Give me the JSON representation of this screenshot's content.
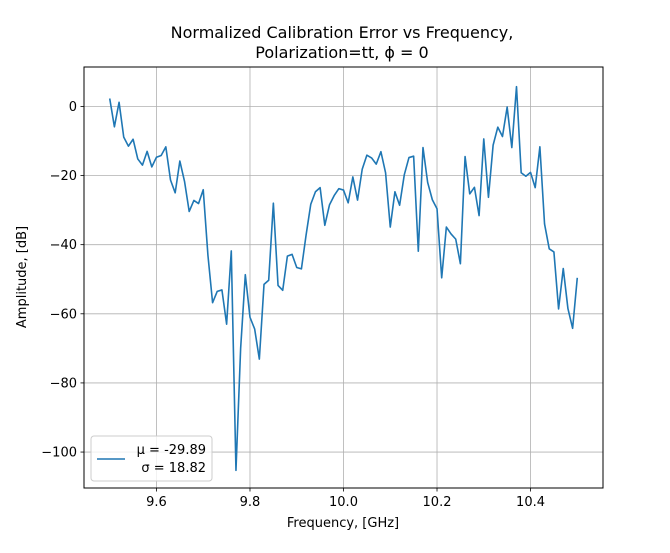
{
  "chart_data": {
    "type": "line",
    "title_line1": "Normalized Calibration Error vs Frequency,",
    "title_line2": "Polarization=tt, ϕ = 0",
    "xlabel": "Frequency, [GHz]",
    "ylabel": "Amplitude, [dB]",
    "xlim": [
      9.445,
      10.555
    ],
    "ylim": [
      -110.4,
      11.4
    ],
    "xticks": [
      9.6,
      9.8,
      10.0,
      10.2,
      10.4
    ],
    "xtick_labels": [
      "9.6",
      "9.8",
      "10.0",
      "10.2",
      "10.4"
    ],
    "yticks": [
      0,
      -20,
      -40,
      -60,
      -80,
      -100
    ],
    "ytick_labels": [
      "0",
      "−20",
      "−40",
      "−60",
      "−80",
      "−100"
    ],
    "grid": true,
    "legend_position": "lower-left",
    "color": "#1f77b4",
    "series": [
      {
        "legend_line1": "μ = -29.89",
        "legend_line2": "σ = 18.82",
        "x": [
          9.5,
          9.51,
          9.52,
          9.53,
          9.54,
          9.55,
          9.56,
          9.57,
          9.58,
          9.59,
          9.6,
          9.61,
          9.62,
          9.63,
          9.64,
          9.65,
          9.66,
          9.67,
          9.68,
          9.69,
          9.7,
          9.71,
          9.72,
          9.73,
          9.74,
          9.75,
          9.76,
          9.77,
          9.78,
          9.79,
          9.8,
          9.81,
          9.82,
          9.83,
          9.84,
          9.85,
          9.86,
          9.87,
          9.88,
          9.89,
          9.9,
          9.91,
          9.92,
          9.93,
          9.94,
          9.95,
          9.96,
          9.97,
          9.98,
          9.99,
          10.0,
          10.01,
          10.02,
          10.03,
          10.04,
          10.05,
          10.06,
          10.07,
          10.08,
          10.09,
          10.1,
          10.11,
          10.12,
          10.13,
          10.14,
          10.15,
          10.16,
          10.17,
          10.18,
          10.19,
          10.2,
          10.21,
          10.22,
          10.23,
          10.24,
          10.25,
          10.26,
          10.27,
          10.28,
          10.29,
          10.3,
          10.31,
          10.32,
          10.33,
          10.34,
          10.35,
          10.36,
          10.37,
          10.38,
          10.39,
          10.4,
          10.41,
          10.42,
          10.43,
          10.44,
          10.45,
          10.46,
          10.47,
          10.48,
          10.49,
          10.5
        ],
        "y": [
          2.3,
          -5.9,
          1.2,
          -8.9,
          -11.5,
          -9.5,
          -15.2,
          -17,
          -13,
          -17.5,
          -14.7,
          -14.2,
          -11.7,
          -21.3,
          -25,
          -15.8,
          -21.7,
          -30.4,
          -27.2,
          -28.1,
          -24.1,
          -43,
          -56.8,
          -53.5,
          -53.1,
          -63,
          -41.8,
          -105.3,
          -70,
          -48.7,
          -61,
          -64.4,
          -73.1,
          -51.5,
          -50.3,
          -28,
          -51.8,
          -53.2,
          -43.3,
          -42.8,
          -46.6,
          -47,
          -37.2,
          -28.3,
          -24.7,
          -23.5,
          -34.4,
          -28.5,
          -25.8,
          -23.8,
          -24.2,
          -27.9,
          -20.4,
          -27.1,
          -18.2,
          -14.1,
          -14.9,
          -16.7,
          -13.1,
          -19.2,
          -34.9,
          -24.7,
          -28.6,
          -19.8,
          -14.8,
          -14.4,
          -41.9,
          -11.9,
          -22,
          -27,
          -29.6,
          -49.6,
          -34.9,
          -36.9,
          -38.4,
          -45.5,
          -14.5,
          -25.3,
          -23.4,
          -31.6,
          -9.4,
          -26.3,
          -11.2,
          -6,
          -8.7,
          -0.2,
          -11.9,
          5.7,
          -19.2,
          -20.2,
          -19.1,
          -23.5,
          -11.7,
          -34,
          -41.2,
          -42.1,
          -58.6,
          -46.9,
          -58.5,
          -64.2,
          -49.6
        ]
      }
    ]
  }
}
